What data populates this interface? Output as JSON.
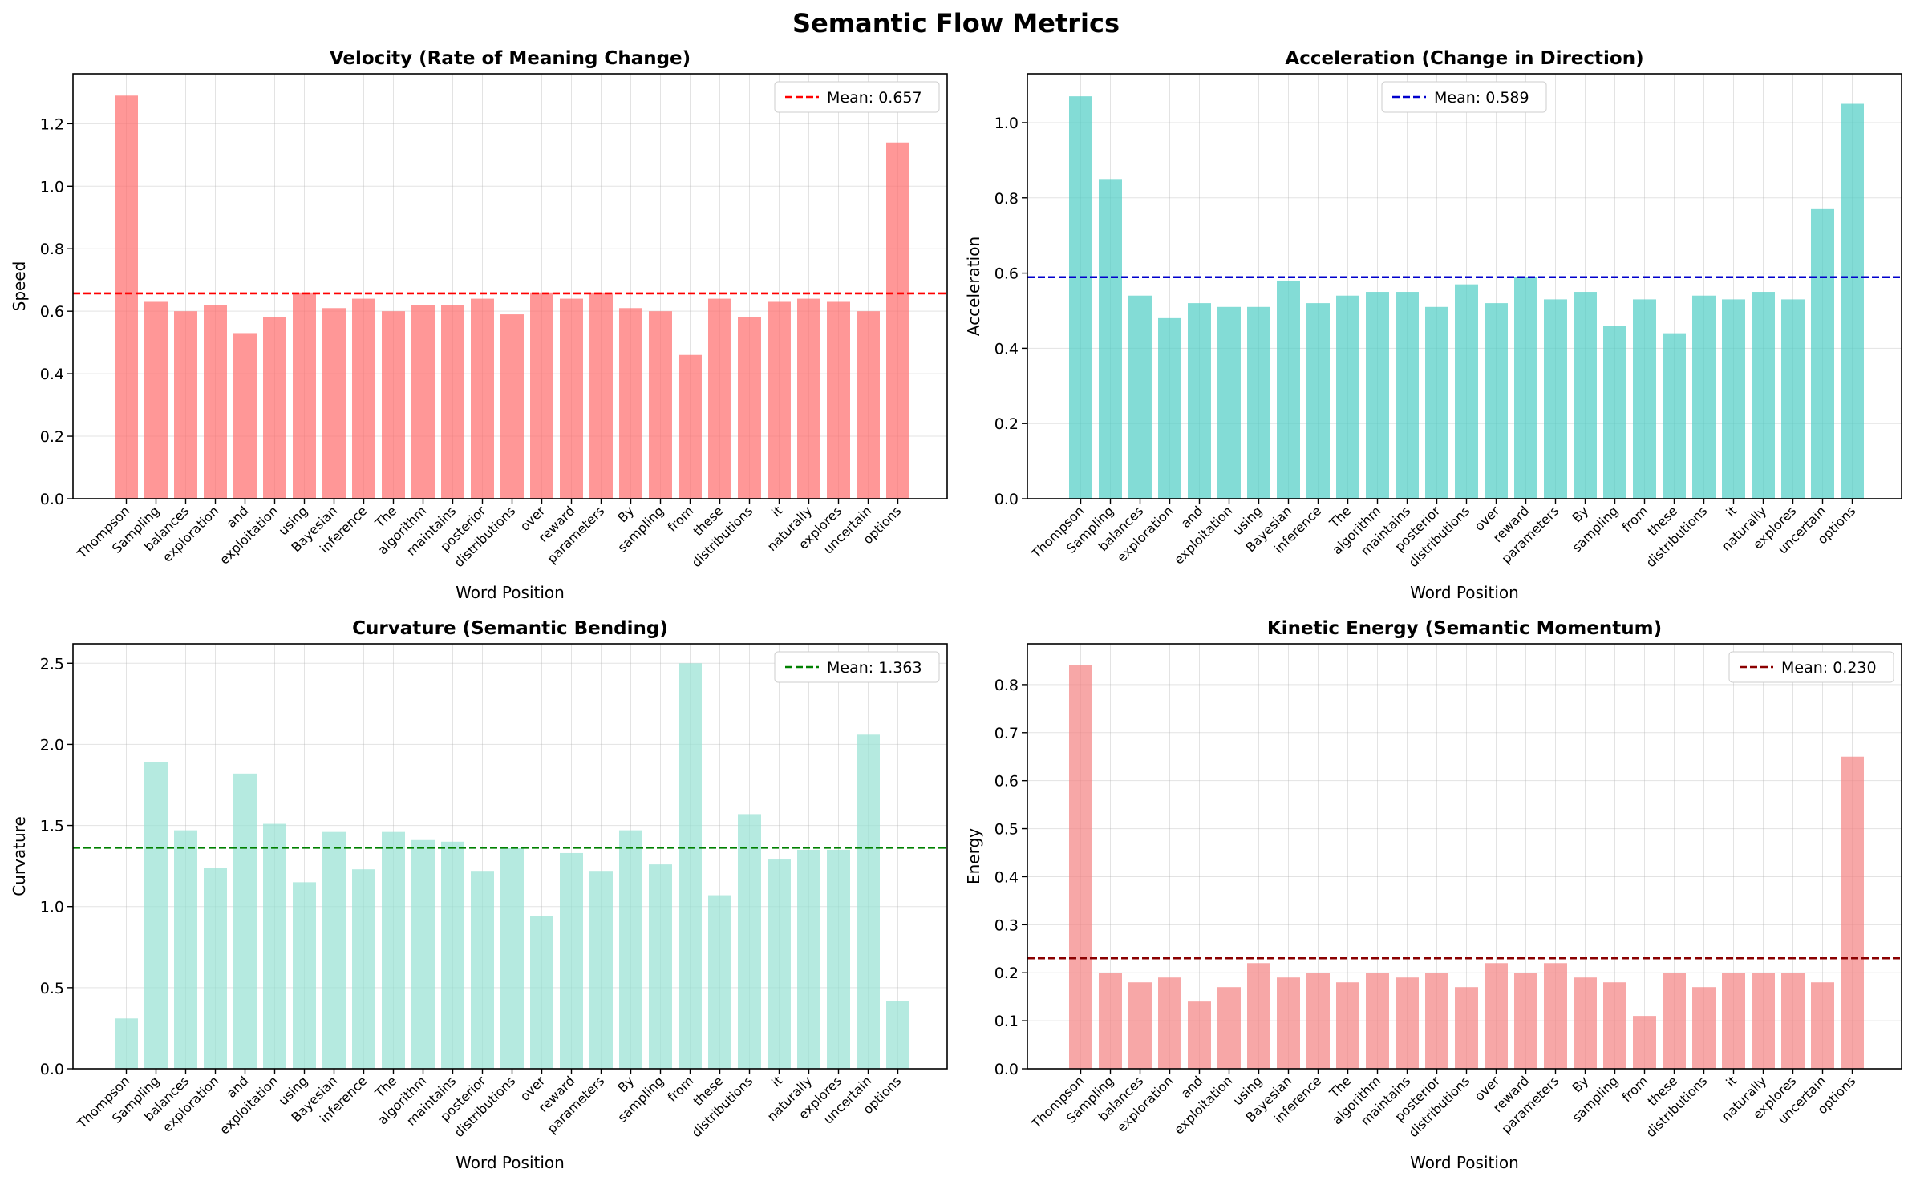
{
  "figure": {
    "title": "Semantic Flow Metrics"
  },
  "chart_data": [
    {
      "type": "bar",
      "title": "Velocity (Rate of Meaning Change)",
      "xlabel": "Word Position",
      "ylabel": "Speed",
      "ylim": [
        0,
        1.36
      ],
      "yticks": [
        "0.0",
        "0.2",
        "0.4",
        "0.6",
        "0.8",
        "1.0",
        "1.2"
      ],
      "grid": true,
      "legend_placement": "top-right",
      "bar_color": "#FF6B6B",
      "categories": [
        "Thompson",
        "Sampling",
        "balances",
        "exploration",
        "and",
        "exploitation",
        "using",
        "Bayesian",
        "inference",
        "The",
        "algorithm",
        "maintains",
        "posterior",
        "distributions",
        "over",
        "reward",
        "parameters",
        "By",
        "sampling",
        "from",
        "these",
        "distributions",
        "it",
        "naturally",
        "explores",
        "uncertain",
        "options"
      ],
      "values": [
        1.29,
        0.63,
        0.6,
        0.62,
        0.53,
        0.58,
        0.66,
        0.61,
        0.64,
        0.6,
        0.62,
        0.62,
        0.64,
        0.59,
        0.66,
        0.64,
        0.66,
        0.61,
        0.6,
        0.46,
        0.64,
        0.58,
        0.63,
        0.64,
        0.63,
        0.6,
        1.14
      ],
      "mean": {
        "value": 0.657,
        "label": "Mean: 0.657",
        "color": "#FF0000"
      }
    },
    {
      "type": "bar",
      "title": "Acceleration (Change in Direction)",
      "xlabel": "Word Position",
      "ylabel": "Acceleration",
      "ylim": [
        0,
        1.13
      ],
      "yticks": [
        "0.0",
        "0.2",
        "0.4",
        "0.6",
        "0.8",
        "1.0"
      ],
      "grid": true,
      "legend_placement": "top-center",
      "bar_color": "#4ECDC4",
      "categories": [
        "Thompson",
        "Sampling",
        "balances",
        "exploration",
        "and",
        "exploitation",
        "using",
        "Bayesian",
        "inference",
        "The",
        "algorithm",
        "maintains",
        "posterior",
        "distributions",
        "over",
        "reward",
        "parameters",
        "By",
        "sampling",
        "from",
        "these",
        "distributions",
        "it",
        "naturally",
        "explores",
        "uncertain",
        "options"
      ],
      "values": [
        1.07,
        0.85,
        0.54,
        0.48,
        0.52,
        0.51,
        0.51,
        0.58,
        0.52,
        0.54,
        0.55,
        0.55,
        0.51,
        0.57,
        0.52,
        0.59,
        0.53,
        0.55,
        0.46,
        0.53,
        0.44,
        0.54,
        0.53,
        0.55,
        0.53,
        0.77,
        1.05
      ],
      "mean": {
        "value": 0.589,
        "label": "Mean: 0.589",
        "color": "#0000CD"
      }
    },
    {
      "type": "bar",
      "title": "Curvature (Semantic Bending)",
      "xlabel": "Word Position",
      "ylabel": "Curvature",
      "ylim": [
        0,
        2.62
      ],
      "yticks": [
        "0.0",
        "0.5",
        "1.0",
        "1.5",
        "2.0",
        "2.5"
      ],
      "grid": true,
      "legend_placement": "top-right",
      "bar_color": "#95E1D3",
      "categories": [
        "Thompson",
        "Sampling",
        "balances",
        "exploration",
        "and",
        "exploitation",
        "using",
        "Bayesian",
        "inference",
        "The",
        "algorithm",
        "maintains",
        "posterior",
        "distributions",
        "over",
        "reward",
        "parameters",
        "By",
        "sampling",
        "from",
        "these",
        "distributions",
        "it",
        "naturally",
        "explores",
        "uncertain",
        "options"
      ],
      "values": [
        0.31,
        1.89,
        1.47,
        1.24,
        1.82,
        1.51,
        1.15,
        1.46,
        1.23,
        1.46,
        1.41,
        1.4,
        1.22,
        1.36,
        0.94,
        1.33,
        1.22,
        1.47,
        1.26,
        2.5,
        1.07,
        1.57,
        1.29,
        1.35,
        1.35,
        2.06,
        0.42
      ],
      "mean": {
        "value": 1.363,
        "label": "Mean: 1.363",
        "color": "#008000"
      }
    },
    {
      "type": "bar",
      "title": "Kinetic Energy (Semantic Momentum)",
      "xlabel": "Word Position",
      "ylabel": "Energy",
      "ylim": [
        0,
        0.885
      ],
      "yticks": [
        "0.0",
        "0.1",
        "0.2",
        "0.3",
        "0.4",
        "0.5",
        "0.6",
        "0.7",
        "0.8"
      ],
      "grid": true,
      "legend_placement": "top-right",
      "bar_color": "#F38181",
      "categories": [
        "Thompson",
        "Sampling",
        "balances",
        "exploration",
        "and",
        "exploitation",
        "using",
        "Bayesian",
        "inference",
        "The",
        "algorithm",
        "maintains",
        "posterior",
        "distributions",
        "over",
        "reward",
        "parameters",
        "By",
        "sampling",
        "from",
        "these",
        "distributions",
        "it",
        "naturally",
        "explores",
        "uncertain",
        "options"
      ],
      "values": [
        0.84,
        0.2,
        0.18,
        0.19,
        0.14,
        0.17,
        0.22,
        0.19,
        0.2,
        0.18,
        0.2,
        0.19,
        0.2,
        0.17,
        0.22,
        0.2,
        0.22,
        0.19,
        0.18,
        0.11,
        0.2,
        0.17,
        0.2,
        0.2,
        0.2,
        0.18,
        0.65
      ],
      "mean": {
        "value": 0.23,
        "label": "Mean: 0.230",
        "color": "#8B0000"
      }
    }
  ]
}
